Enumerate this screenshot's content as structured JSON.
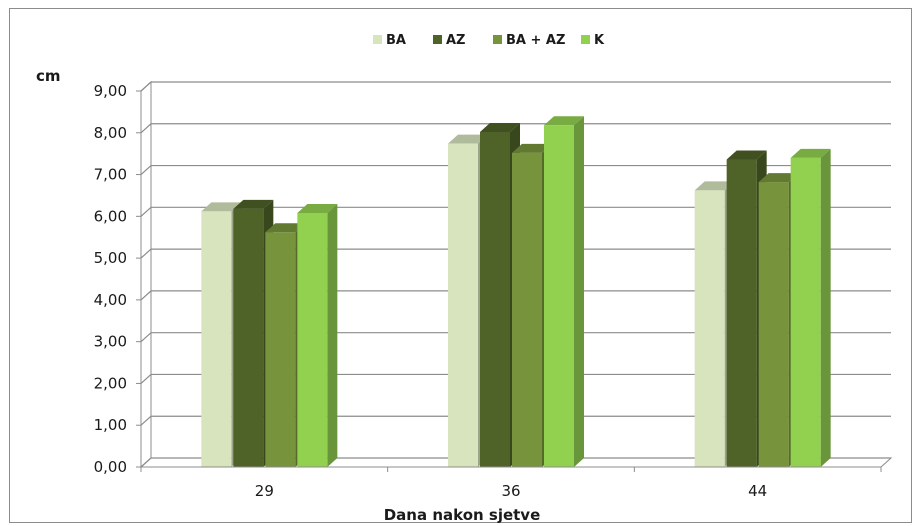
{
  "chart_data": {
    "type": "bar",
    "title": "",
    "xlabel": "Dana nakon sjetve",
    "ylabel": "cm",
    "categories": [
      "29",
      "36",
      "44"
    ],
    "ylim": [
      0,
      9
    ],
    "yticks": [
      "0,00",
      "1,00",
      "2,00",
      "3,00",
      "4,00",
      "5,00",
      "6,00",
      "7,00",
      "8,00",
      "9,00"
    ],
    "grid": true,
    "legend_position": "top",
    "series": [
      {
        "name": "BA",
        "color": "#d7e4bd",
        "values": [
          6.12,
          7.74,
          6.62
        ]
      },
      {
        "name": "AZ",
        "color": "#4f6228",
        "values": [
          6.18,
          8.02,
          7.36
        ]
      },
      {
        "name": "BA + AZ",
        "color": "#77933c",
        "values": [
          5.62,
          7.52,
          6.82
        ]
      },
      {
        "name": "K",
        "color": "#92d050",
        "values": [
          6.08,
          8.18,
          7.4
        ]
      }
    ]
  }
}
